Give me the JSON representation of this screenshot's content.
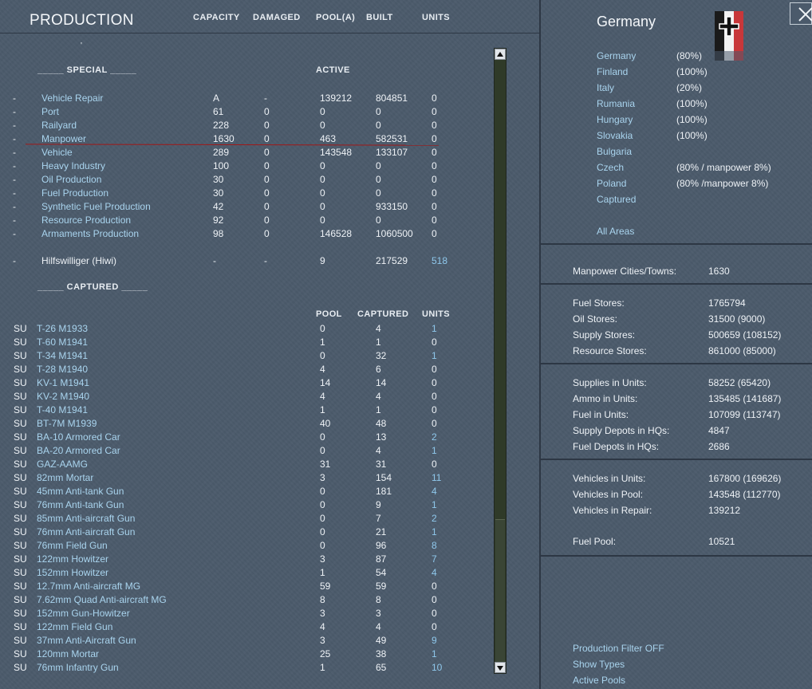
{
  "header": {
    "title": "PRODUCTION",
    "columns": [
      "CAPACITY",
      "DAMAGED",
      "POOL(A)",
      "BUILT",
      "UNITS"
    ]
  },
  "special": {
    "heading": "_____ SPECIAL _____",
    "active_label": "ACTIVE",
    "rows": [
      {
        "dash": "-",
        "name": "Vehicle Repair",
        "capacity": "A",
        "damaged": "-",
        "pool": "139212",
        "built": "804851",
        "units": "0"
      },
      {
        "dash": "-",
        "name": "Port",
        "capacity": "61",
        "damaged": "0",
        "pool": "0",
        "built": "0",
        "units": "0"
      },
      {
        "dash": "-",
        "name": "Railyard",
        "capacity": "228",
        "damaged": "0",
        "pool": "0",
        "built": "0",
        "units": "0"
      },
      {
        "dash": "-",
        "name": "Manpower",
        "capacity": "1630",
        "damaged": "0",
        "pool": "463",
        "built": "582531",
        "units": "0"
      },
      {
        "dash": "-",
        "name": "Vehicle",
        "capacity": "289",
        "damaged": "0",
        "pool": "143548",
        "built": "133107",
        "units": "0"
      },
      {
        "dash": "-",
        "name": "Heavy Industry",
        "capacity": "100",
        "damaged": "0",
        "pool": "0",
        "built": "0",
        "units": "0"
      },
      {
        "dash": "-",
        "name": "Oil Production",
        "capacity": "30",
        "damaged": "0",
        "pool": "0",
        "built": "0",
        "units": "0"
      },
      {
        "dash": "-",
        "name": "Fuel Production",
        "capacity": "30",
        "damaged": "0",
        "pool": "0",
        "built": "0",
        "units": "0"
      },
      {
        "dash": "-",
        "name": "Synthetic Fuel Production",
        "capacity": "42",
        "damaged": "0",
        "pool": "0",
        "built": "933150",
        "units": "0"
      },
      {
        "dash": "-",
        "name": "Resource Production",
        "capacity": "92",
        "damaged": "0",
        "pool": "0",
        "built": "0",
        "units": "0"
      },
      {
        "dash": "-",
        "name": "Armaments Production",
        "capacity": "98",
        "damaged": "0",
        "pool": "146528",
        "built": "1060500",
        "units": "0"
      }
    ],
    "hiwi": {
      "dash": "-",
      "name": "Hilfswilliger (Hiwi)",
      "capacity": "-",
      "damaged": "-",
      "pool": "9",
      "built": "217529",
      "units": "518"
    }
  },
  "captured": {
    "heading": "_____ CAPTURED _____",
    "columns": [
      "POOL",
      "CAPTURED",
      "UNITS"
    ],
    "rows": [
      {
        "nation": "SU",
        "name": "T-26 M1933",
        "pool": "0",
        "captured": "4",
        "units": "1"
      },
      {
        "nation": "SU",
        "name": "T-60 M1941",
        "pool": "1",
        "captured": "1",
        "units": "0"
      },
      {
        "nation": "SU",
        "name": "T-34 M1941",
        "pool": "0",
        "captured": "32",
        "units": "1"
      },
      {
        "nation": "SU",
        "name": "T-28 M1940",
        "pool": "4",
        "captured": "6",
        "units": "0"
      },
      {
        "nation": "SU",
        "name": "KV-1 M1941",
        "pool": "14",
        "captured": "14",
        "units": "0"
      },
      {
        "nation": "SU",
        "name": "KV-2 M1940",
        "pool": "4",
        "captured": "4",
        "units": "0"
      },
      {
        "nation": "SU",
        "name": "T-40 M1941",
        "pool": "1",
        "captured": "1",
        "units": "0"
      },
      {
        "nation": "SU",
        "name": "BT-7M M1939",
        "pool": "40",
        "captured": "48",
        "units": "0"
      },
      {
        "nation": "SU",
        "name": "BA-10 Armored Car",
        "pool": "0",
        "captured": "13",
        "units": "2"
      },
      {
        "nation": "SU",
        "name": "BA-20 Armored Car",
        "pool": "0",
        "captured": "4",
        "units": "1"
      },
      {
        "nation": "SU",
        "name": "GAZ-AAMG",
        "pool": "31",
        "captured": "31",
        "units": "0"
      },
      {
        "nation": "SU",
        "name": "82mm Mortar",
        "pool": "3",
        "captured": "154",
        "units": "11"
      },
      {
        "nation": "SU",
        "name": "45mm Anti-tank Gun",
        "pool": "0",
        "captured": "181",
        "units": "4"
      },
      {
        "nation": "SU",
        "name": "76mm Anti-tank Gun",
        "pool": "0",
        "captured": "9",
        "units": "1"
      },
      {
        "nation": "SU",
        "name": "85mm Anti-aircraft Gun",
        "pool": "0",
        "captured": "7",
        "units": "2"
      },
      {
        "nation": "SU",
        "name": "76mm Anti-aircraft Gun",
        "pool": "0",
        "captured": "21",
        "units": "1"
      },
      {
        "nation": "SU",
        "name": "76mm Field Gun",
        "pool": "0",
        "captured": "96",
        "units": "8"
      },
      {
        "nation": "SU",
        "name": "122mm Howitzer",
        "pool": "3",
        "captured": "87",
        "units": "7"
      },
      {
        "nation": "SU",
        "name": "152mm Howitzer",
        "pool": "1",
        "captured": "54",
        "units": "4"
      },
      {
        "nation": "SU",
        "name": "12.7mm Anti-aircraft MG",
        "pool": "59",
        "captured": "59",
        "units": "0"
      },
      {
        "nation": "SU",
        "name": "7.62mm Quad Anti-aircraft MG",
        "pool": "8",
        "captured": "8",
        "units": "0"
      },
      {
        "nation": "SU",
        "name": "152mm Gun-Howitzer",
        "pool": "3",
        "captured": "3",
        "units": "0"
      },
      {
        "nation": "SU",
        "name": "122mm Field Gun",
        "pool": "4",
        "captured": "4",
        "units": "0"
      },
      {
        "nation": "SU",
        "name": "37mm Anti-Aircraft Gun",
        "pool": "3",
        "captured": "49",
        "units": "9"
      },
      {
        "nation": "SU",
        "name": "120mm Mortar",
        "pool": "25",
        "captured": "38",
        "units": "1"
      },
      {
        "nation": "SU",
        "name": "76mm Infantry Gun",
        "pool": "1",
        "captured": "65",
        "units": "10"
      }
    ]
  },
  "nation_panel": {
    "title": "Germany",
    "flag_icon": "iron-cross-flag-icon",
    "nations": [
      {
        "name": "Germany",
        "value": "(80%)"
      },
      {
        "name": "Finland",
        "value": "(100%)"
      },
      {
        "name": "Italy",
        "value": "(20%)"
      },
      {
        "name": "Rumania",
        "value": "(100%)"
      },
      {
        "name": "Hungary",
        "value": "(100%)"
      },
      {
        "name": "Slovakia",
        "value": "(100%)"
      },
      {
        "name": "Bulgaria",
        "value": ""
      },
      {
        "name": "Czech",
        "value": "(80% / manpower 8%)"
      },
      {
        "name": "Poland",
        "value": "(80% /manpower 8%)"
      },
      {
        "name": "Captured",
        "value": ""
      }
    ],
    "all_areas": "All Areas"
  },
  "stats": {
    "manpower": [
      {
        "label": "Manpower Cities/Towns:",
        "value": "1630"
      }
    ],
    "stores": [
      {
        "label": "Fuel Stores:",
        "value": "1765794"
      },
      {
        "label": "Oil Stores:",
        "value": "31500 (9000)"
      },
      {
        "label": "Supply Stores:",
        "value": "500659 (108152)"
      },
      {
        "label": "Resource Stores:",
        "value": "861000 (85000)"
      }
    ],
    "units": [
      {
        "label": "Supplies in Units:",
        "value": "58252 (65420)"
      },
      {
        "label": "Ammo in Units:",
        "value": "135485 (141687)"
      },
      {
        "label": "Fuel in Units:",
        "value": "107099 (113747)"
      },
      {
        "label": "Supply Depots in HQs:",
        "value": "4847"
      },
      {
        "label": "Fuel Depots in HQs:",
        "value": "2686"
      }
    ],
    "vehicles": [
      {
        "label": "Vehicles in Units:",
        "value": "167800 (169626)"
      },
      {
        "label": "Vehicles in Pool:",
        "value": "143548 (112770)"
      },
      {
        "label": "Vehicles in Repair:",
        "value": "139212"
      }
    ],
    "fuel_pool": {
      "label": "Fuel Pool:",
      "value": "10521"
    }
  },
  "footer_links": [
    "Production Filter OFF",
    "Show Types",
    "Active Pools"
  ],
  "colors": {
    "link": "#a9d4ee",
    "highlight": "#8fc8ec",
    "background": "#4b5a6b",
    "underline": "#a01818"
  },
  "icons": {
    "close": "close-icon",
    "scroll_up": "scroll-up-arrow-icon",
    "scroll_down": "scroll-down-arrow-icon"
  }
}
